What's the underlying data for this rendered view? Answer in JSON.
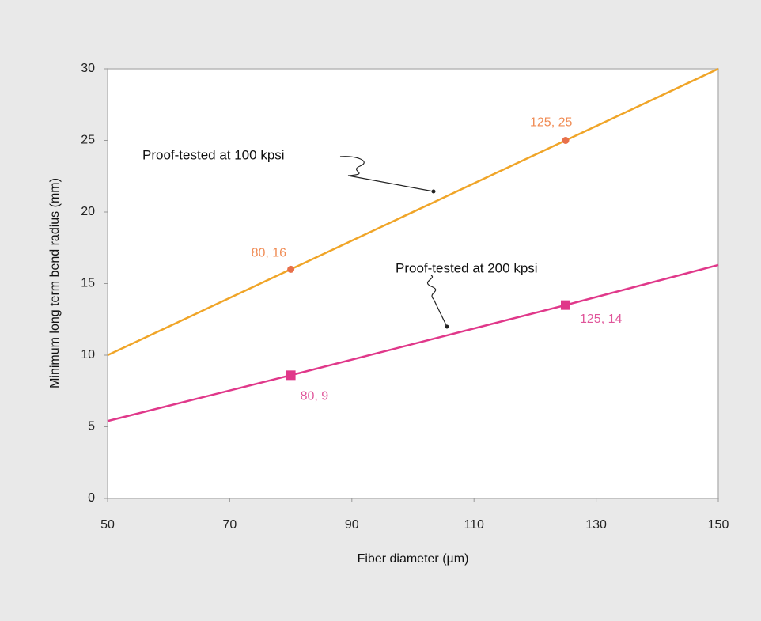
{
  "chart_data": {
    "type": "line",
    "x_label": "Fiber diameter (µm)",
    "y_label": "Minimum long term bend radius (mm)",
    "xlim": [
      50,
      150
    ],
    "ylim": [
      0,
      30
    ],
    "xticks": [
      50,
      70,
      90,
      110,
      130,
      150
    ],
    "yticks": [
      0,
      5,
      10,
      15,
      20,
      25,
      30
    ],
    "grid": false,
    "series": [
      {
        "name": "Proof-tested at 100 kpsi",
        "color": "#f0a528",
        "marker_color": "#e8704a",
        "label_color": "#f08c55",
        "x": [
          50,
          80,
          125,
          150
        ],
        "values": [
          10,
          16,
          25,
          30
        ],
        "value_labels": [
          null,
          "80, 16",
          "125, 25",
          null
        ]
      },
      {
        "name": "Proof-tested at 200 kpsi",
        "color": "#e0388a",
        "marker_color": "#e0388a",
        "label_color": "#e0559a",
        "x": [
          50,
          80,
          125,
          150
        ],
        "values": [
          5.4,
          8.6,
          13.5,
          16.3
        ],
        "value_labels": [
          null,
          "80, 9",
          "125, 14",
          null
        ]
      }
    ]
  }
}
